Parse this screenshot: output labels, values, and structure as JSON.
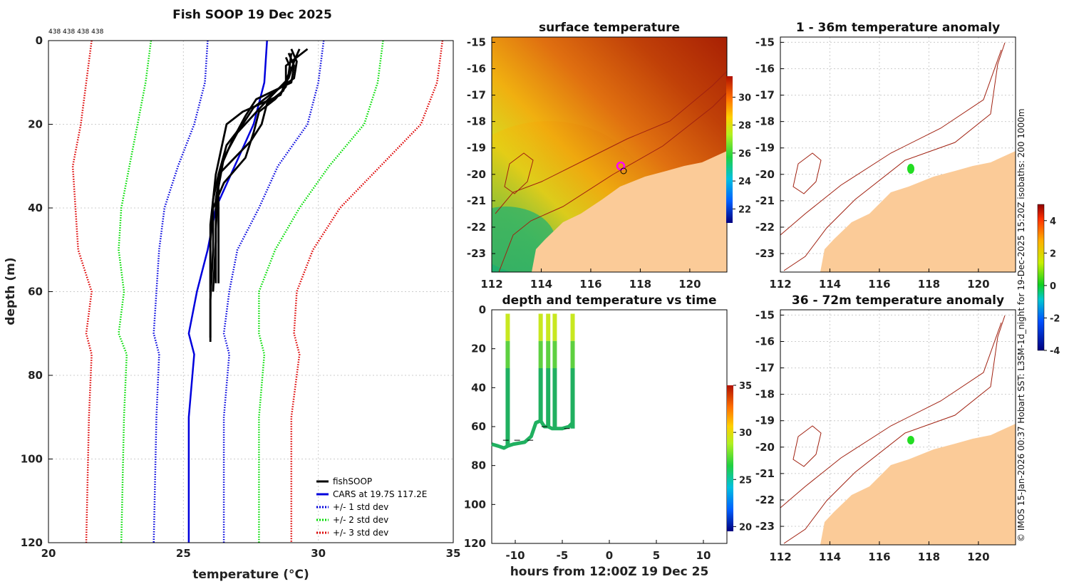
{
  "chart_data": [
    {
      "type": "line",
      "title": "Fish SOOP 19 Dec 2025",
      "profile_counts": "438 438 438 438",
      "xlabel": "temperature (°C)",
      "ylabel": "depth (m)",
      "xlim": [
        20,
        35
      ],
      "ylim": [
        120,
        0
      ],
      "xticks": [
        20,
        25,
        30,
        35
      ],
      "yticks": [
        0,
        20,
        40,
        60,
        80,
        100,
        120
      ],
      "grid": true,
      "legend_position": "bottom-right",
      "legend": [
        "fishSOOP",
        "CARS at 19.7S 117.2E",
        "+/- 1 std dev",
        "+/- 2 std dev",
        "+/- 3 std dev"
      ],
      "series": [
        {
          "name": "CARS at 19.7S 117.2E",
          "color": "#0000dd",
          "style": "solid",
          "points": [
            [
              28.1,
              0
            ],
            [
              28.0,
              10
            ],
            [
              27.6,
              20
            ],
            [
              26.9,
              30
            ],
            [
              26.2,
              40
            ],
            [
              25.9,
              50
            ],
            [
              25.5,
              60
            ],
            [
              25.2,
              70
            ],
            [
              25.4,
              75
            ],
            [
              25.2,
              90
            ],
            [
              25.2,
              120
            ]
          ]
        },
        {
          "name": "-1 std dev",
          "color": "#0000dd",
          "style": "dotted",
          "points": [
            [
              25.9,
              0
            ],
            [
              25.8,
              10
            ],
            [
              25.4,
              20
            ],
            [
              24.8,
              30
            ],
            [
              24.3,
              40
            ],
            [
              24.1,
              50
            ],
            [
              24.0,
              60
            ],
            [
              23.9,
              70
            ],
            [
              24.1,
              75
            ],
            [
              24.0,
              90
            ],
            [
              23.9,
              120
            ]
          ]
        },
        {
          "name": "+1 std dev",
          "color": "#0000dd",
          "style": "dotted",
          "points": [
            [
              30.2,
              0
            ],
            [
              30.0,
              10
            ],
            [
              29.6,
              20
            ],
            [
              28.5,
              30
            ],
            [
              27.8,
              40
            ],
            [
              27.0,
              50
            ],
            [
              26.7,
              60
            ],
            [
              26.5,
              70
            ],
            [
              26.7,
              75
            ],
            [
              26.5,
              90
            ],
            [
              26.5,
              120
            ]
          ]
        },
        {
          "name": "-2 std dev",
          "color": "#00dd00",
          "style": "dotted",
          "points": [
            [
              23.8,
              0
            ],
            [
              23.6,
              10
            ],
            [
              23.3,
              20
            ],
            [
              23.0,
              30
            ],
            [
              22.7,
              40
            ],
            [
              22.6,
              50
            ],
            [
              22.8,
              60
            ],
            [
              22.6,
              70
            ],
            [
              22.9,
              75
            ],
            [
              22.8,
              90
            ],
            [
              22.7,
              120
            ]
          ]
        },
        {
          "name": "+2 std dev",
          "color": "#00dd00",
          "style": "dotted",
          "points": [
            [
              32.4,
              0
            ],
            [
              32.2,
              10
            ],
            [
              31.7,
              20
            ],
            [
              30.4,
              30
            ],
            [
              29.3,
              40
            ],
            [
              28.4,
              50
            ],
            [
              27.8,
              60
            ],
            [
              27.8,
              70
            ],
            [
              28.0,
              75
            ],
            [
              27.8,
              90
            ],
            [
              27.8,
              120
            ]
          ]
        },
        {
          "name": "-3 std dev",
          "color": "#dd0000",
          "style": "dotted",
          "points": [
            [
              21.6,
              0
            ],
            [
              21.4,
              10
            ],
            [
              21.2,
              20
            ],
            [
              20.9,
              30
            ],
            [
              21.0,
              40
            ],
            [
              21.1,
              50
            ],
            [
              21.6,
              60
            ],
            [
              21.4,
              70
            ],
            [
              21.6,
              75
            ],
            [
              21.5,
              90
            ],
            [
              21.4,
              120
            ]
          ]
        },
        {
          "name": "+3 std dev",
          "color": "#dd0000",
          "style": "dotted",
          "points": [
            [
              34.6,
              0
            ],
            [
              34.4,
              10
            ],
            [
              33.8,
              20
            ],
            [
              32.3,
              30
            ],
            [
              30.8,
              40
            ],
            [
              29.8,
              50
            ],
            [
              29.2,
              60
            ],
            [
              29.1,
              70
            ],
            [
              29.3,
              75
            ],
            [
              29.0,
              90
            ],
            [
              29.0,
              120
            ]
          ]
        }
      ],
      "fishsoop_profiles": [
        [
          [
            29.0,
            2
          ],
          [
            29.2,
            5
          ],
          [
            29.1,
            9
          ],
          [
            28.2,
            13
          ],
          [
            27.6,
            16
          ],
          [
            27.2,
            20
          ],
          [
            26.6,
            25
          ],
          [
            26.3,
            32
          ],
          [
            26.3,
            40
          ],
          [
            26.3,
            50
          ],
          [
            26.3,
            58
          ]
        ],
        [
          [
            28.9,
            3
          ],
          [
            29.1,
            6
          ],
          [
            29.0,
            10
          ],
          [
            27.7,
            14
          ],
          [
            27.3,
            18
          ],
          [
            26.8,
            24
          ],
          [
            26.4,
            30
          ],
          [
            26.2,
            38
          ],
          [
            26.2,
            48
          ],
          [
            26.1,
            60
          ]
        ],
        [
          [
            29.3,
            2
          ],
          [
            29.1,
            5
          ],
          [
            28.9,
            9
          ],
          [
            28.0,
            15
          ],
          [
            27.0,
            22
          ],
          [
            26.5,
            28
          ],
          [
            26.3,
            35
          ],
          [
            26.2,
            45
          ],
          [
            26.2,
            58
          ]
        ],
        [
          [
            29.6,
            2
          ],
          [
            28.8,
            6
          ],
          [
            28.8,
            11
          ],
          [
            28.4,
            14
          ],
          [
            27.8,
            17
          ],
          [
            27.6,
            22
          ],
          [
            27.3,
            28
          ],
          [
            26.5,
            34
          ],
          [
            26.1,
            40
          ],
          [
            26.1,
            50
          ],
          [
            26.0,
            62
          ],
          [
            26.0,
            72
          ]
        ],
        [
          [
            29.0,
            3
          ],
          [
            28.9,
            8
          ],
          [
            28.6,
            13
          ],
          [
            27.2,
            17
          ],
          [
            26.6,
            20
          ],
          [
            26.4,
            26
          ],
          [
            26.2,
            32
          ],
          [
            26.0,
            44
          ],
          [
            26.0,
            55
          ],
          [
            26.0,
            65
          ],
          [
            26.0,
            71
          ]
        ],
        [
          [
            28.8,
            4
          ],
          [
            29.0,
            7
          ],
          [
            28.7,
            12
          ],
          [
            28.1,
            15
          ],
          [
            27.9,
            20
          ],
          [
            27.5,
            24
          ],
          [
            26.9,
            28
          ],
          [
            26.3,
            32
          ],
          [
            26.1,
            38
          ],
          [
            26.0,
            48
          ],
          [
            26.0,
            60
          ]
        ]
      ]
    },
    {
      "type": "heatmap",
      "title": "surface temperature",
      "xticks": [
        "112",
        "114",
        "116",
        "118",
        "120"
      ],
      "yticks": [
        "-15",
        "-16",
        "-17",
        "-18",
        "-19",
        "-20",
        "-21",
        "-22",
        "-23"
      ],
      "xlim": [
        112,
        121.5
      ],
      "ylim": [
        -23.7,
        -14.8
      ],
      "colorbar": {
        "min": 21,
        "max": 31.5,
        "ticks": [
          "22",
          "24",
          "26",
          "28",
          "30"
        ]
      },
      "marker_location": [
        117.2,
        -19.7
      ]
    },
    {
      "type": "scatter",
      "title": "depth and temperature vs time",
      "xlabel": "hours from 12:00Z 19 Dec 25",
      "xticks": [
        "-10",
        "-5",
        "0",
        "5",
        "10"
      ],
      "yticks": [
        "0",
        "20",
        "40",
        "60",
        "80",
        "100",
        "120"
      ],
      "xlim": [
        -12.5,
        12.5
      ],
      "ylim": [
        120,
        0
      ],
      "colorbar": {
        "min": 19.5,
        "max": 35,
        "ticks": [
          "20",
          "25",
          "30",
          "35"
        ]
      },
      "casts": [
        {
          "time": -10.8,
          "max_depth": 70
        },
        {
          "time": -7.3,
          "max_depth": 58
        },
        {
          "time": -6.5,
          "max_depth": 60
        },
        {
          "time": -5.8,
          "max_depth": 61
        },
        {
          "time": -3.9,
          "max_depth": 61
        }
      ]
    },
    {
      "type": "heatmap",
      "title": "1 - 36m temperature anomaly",
      "xticks": [
        "112",
        "114",
        "116",
        "118",
        "120"
      ],
      "yticks": [
        "-15",
        "-16",
        "-17",
        "-18",
        "-19",
        "-20",
        "-21",
        "-22",
        "-23"
      ],
      "xlim": [
        112,
        121.5
      ],
      "ylim": [
        -23.7,
        -14.8
      ],
      "marker_location": [
        117.2,
        -19.7
      ]
    },
    {
      "type": "heatmap",
      "title": "36 - 72m temperature anomaly",
      "xticks": [
        "112",
        "114",
        "116",
        "118",
        "120"
      ],
      "yticks": [
        "-15",
        "-16",
        "-17",
        "-18",
        "-19",
        "-20",
        "-21",
        "-22",
        "-23"
      ],
      "xlim": [
        112,
        121.5
      ],
      "ylim": [
        -23.7,
        -14.8
      ],
      "marker_location": [
        117.2,
        -19.7
      ],
      "colorbar": {
        "min": -4,
        "max": 5,
        "ticks": [
          "-4",
          "-2",
          "0",
          "2",
          "4"
        ]
      }
    }
  ],
  "credit_text": "© IMOS 15-Jan-2026 00:37 Hobart SST: L3SM-1d_night for 19-Dec-2025 15:20Z isobaths: 200  1000m",
  "colors": {
    "land": "#fbcb98",
    "isobath": "#b22a1a",
    "marker": "#22dd22",
    "station_marker": "#ff00ff"
  }
}
